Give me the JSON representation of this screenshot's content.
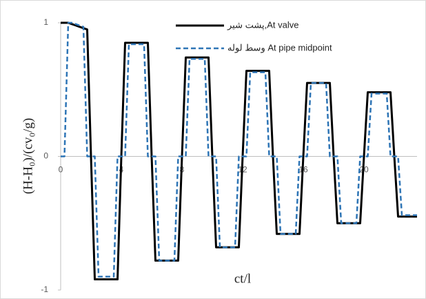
{
  "chart_data": {
    "type": "line",
    "y_label": "(H-H₀)/(cv₀/g)",
    "x_label": "ct/l",
    "x": [
      0,
      0.25,
      0.5,
      0.75,
      1,
      1.25,
      1.5,
      1.75,
      2,
      2.25,
      2.5,
      2.75,
      3,
      3.25,
      3.5,
      3.75,
      4,
      4.25,
      4.5,
      4.75,
      5,
      5.25,
      5.5,
      5.75,
      6,
      6.25,
      6.5,
      6.75,
      7,
      7.25,
      7.5,
      7.75,
      8,
      8.25,
      8.5,
      8.75,
      9,
      9.25,
      9.5,
      9.75,
      10,
      10.25,
      10.5,
      10.75,
      11,
      11.25,
      11.5,
      11.75,
      12,
      12.25,
      12.5,
      12.75,
      13,
      13.25,
      13.5,
      13.75,
      14,
      14.25,
      14.5,
      14.75,
      15,
      15.25,
      15.5,
      15.75,
      16,
      16.25,
      16.5,
      16.75,
      17,
      17.25,
      17.5,
      17.75,
      18,
      18.25,
      18.5,
      18.75,
      19,
      19.25,
      19.5,
      19.75,
      20,
      20.25,
      20.5,
      20.75,
      21,
      21.25,
      21.5,
      21.75,
      22,
      22.25,
      22.5,
      22.75,
      23,
      23.25,
      23.5
    ],
    "series": [
      {
        "name": "پشت شیر,At valve",
        "color": "#000000",
        "dash": false,
        "values": [
          1,
          1,
          1,
          0.99,
          0.98,
          0.97,
          0.96,
          0.95,
          0,
          -0.92,
          -0.92,
          -0.92,
          -0.92,
          -0.92,
          -0.92,
          -0.92,
          0,
          0.85,
          0.85,
          0.85,
          0.85,
          0.85,
          0.85,
          0.85,
          0,
          -0.78,
          -0.78,
          -0.78,
          -0.78,
          -0.78,
          -0.78,
          -0.78,
          0,
          0.74,
          0.74,
          0.74,
          0.74,
          0.74,
          0.74,
          0.74,
          0,
          -0.68,
          -0.68,
          -0.68,
          -0.68,
          -0.68,
          -0.68,
          -0.68,
          0,
          0.64,
          0.64,
          0.64,
          0.64,
          0.64,
          0.64,
          0.64,
          0,
          -0.58,
          -0.58,
          -0.58,
          -0.58,
          -0.58,
          -0.58,
          -0.58,
          0,
          0.55,
          0.55,
          0.55,
          0.55,
          0.55,
          0.55,
          0.55,
          0,
          -0.5,
          -0.5,
          -0.5,
          -0.5,
          -0.5,
          -0.5,
          -0.5,
          0,
          0.48,
          0.48,
          0.48,
          0.48,
          0.48,
          0.48,
          0.48,
          0,
          -0.45,
          -0.45,
          -0.45,
          -0.45,
          -0.45,
          -0.45
        ]
      },
      {
        "name": "وسط لوله At pipe midpoint",
        "color": "#2e75b6",
        "dash": true,
        "values": [
          0,
          0,
          1,
          1,
          0.99,
          0.98,
          0.97,
          0,
          0,
          0,
          -0.9,
          -0.9,
          -0.9,
          -0.9,
          -0.9,
          0,
          0,
          0,
          0.84,
          0.84,
          0.84,
          0.84,
          0.84,
          0,
          0,
          0,
          -0.78,
          -0.78,
          -0.78,
          -0.78,
          -0.78,
          0,
          0,
          0,
          0.73,
          0.73,
          0.73,
          0.73,
          0.73,
          0,
          0,
          0,
          -0.68,
          -0.68,
          -0.68,
          -0.68,
          -0.68,
          0,
          0,
          0,
          0.63,
          0.63,
          0.63,
          0.63,
          0.63,
          0,
          0,
          0,
          -0.58,
          -0.58,
          -0.58,
          -0.58,
          -0.58,
          0,
          0,
          0,
          0.55,
          0.55,
          0.55,
          0.55,
          0.55,
          0,
          0,
          0,
          -0.5,
          -0.5,
          -0.5,
          -0.5,
          -0.5,
          0,
          0,
          0,
          0.47,
          0.47,
          0.47,
          0.47,
          0.47,
          0,
          0,
          0,
          -0.44,
          -0.44,
          -0.44,
          -0.44,
          -0.44
        ]
      }
    ],
    "xlim": [
      0,
      23.5
    ],
    "ylim": [
      -1,
      1
    ],
    "xticks": [
      0,
      4,
      8,
      12,
      16,
      20
    ],
    "yticks": [
      -1,
      0,
      1
    ],
    "legend": "top-right"
  }
}
